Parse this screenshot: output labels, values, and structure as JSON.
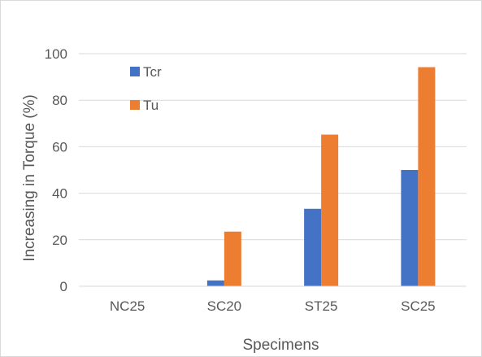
{
  "chart_data": {
    "type": "bar",
    "title": "",
    "xlabel": "Specimens",
    "ylabel": "Increasing in Torque (%)",
    "categories": [
      "NC25",
      "SC20",
      "ST25",
      "SC25"
    ],
    "series": [
      {
        "name": "Tcr",
        "values": [
          0,
          2.5,
          33.3,
          50
        ],
        "color": "#4472c4"
      },
      {
        "name": "Tu",
        "values": [
          0,
          23.5,
          65.2,
          94.2
        ],
        "color": "#ed7d31"
      }
    ],
    "ylim": [
      0,
      100
    ],
    "yticks": [
      0,
      20,
      40,
      60,
      80,
      100
    ],
    "grid": "horizontal",
    "legend_position": "top-left"
  }
}
